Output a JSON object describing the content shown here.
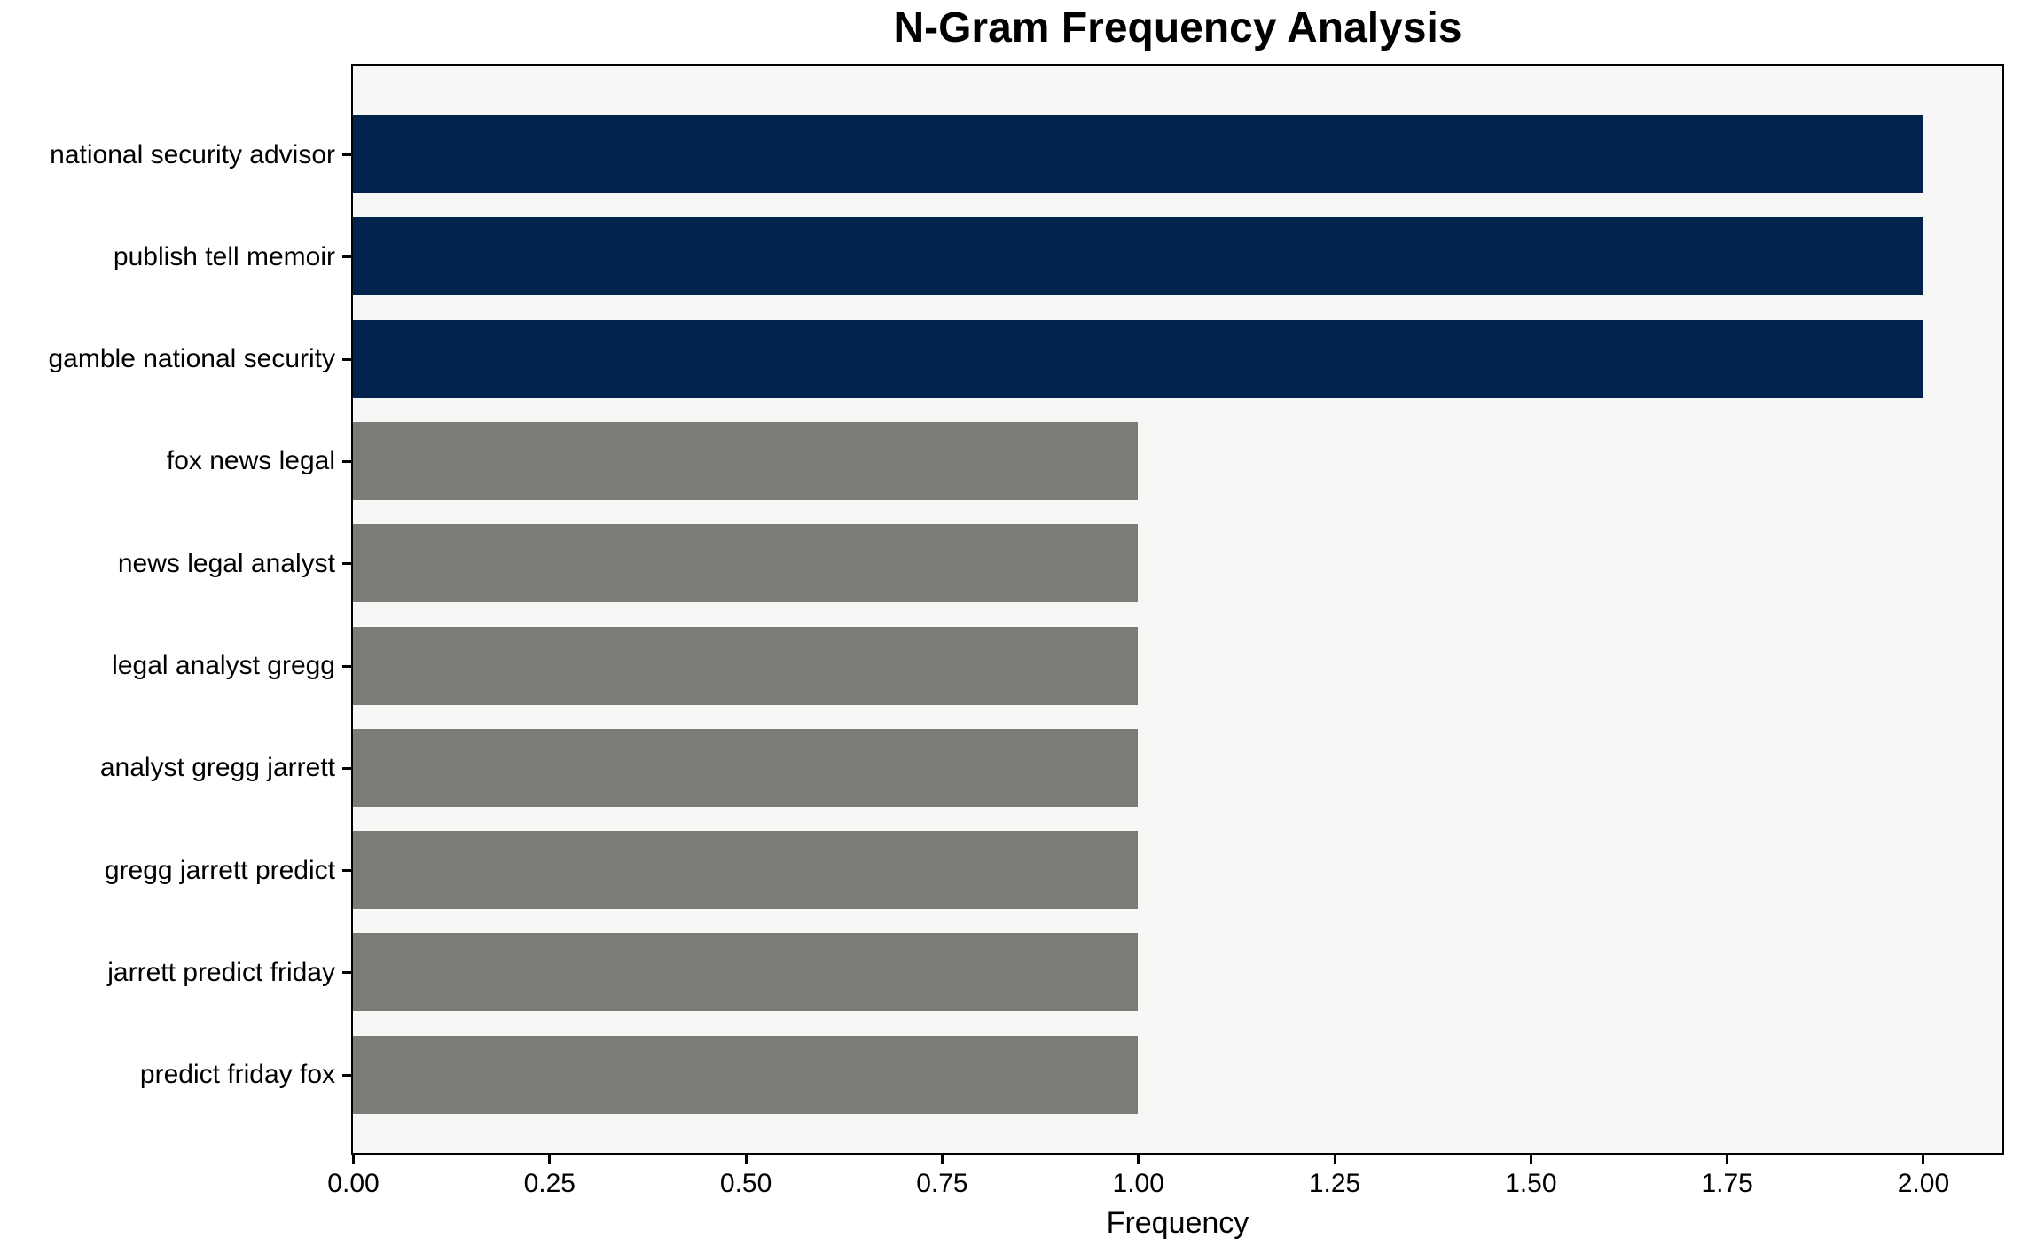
{
  "chart_data": {
    "type": "bar",
    "orientation": "horizontal",
    "title": "N-Gram Frequency Analysis",
    "xlabel": "Frequency",
    "ylabel": "",
    "categories": [
      "national security advisor",
      "publish tell memoir",
      "gamble national security",
      "fox news legal",
      "news legal analyst",
      "legal analyst gregg",
      "analyst gregg jarrett",
      "gregg jarrett predict",
      "jarrett predict friday",
      "predict friday fox"
    ],
    "values": [
      2,
      2,
      2,
      1,
      1,
      1,
      1,
      1,
      1,
      1
    ],
    "bar_colors": [
      "#02234d",
      "#02234d",
      "#02234d",
      "#7b7b78",
      "#7b7b78",
      "#7b7b78",
      "#7b7b78",
      "#7b7b78",
      "#7b7b78",
      "#7b7b78"
    ],
    "xlim": [
      0,
      2.1
    ],
    "xtick_values": [
      0,
      0.25,
      0.5,
      0.75,
      1.0,
      1.25,
      1.5,
      1.75,
      2.0
    ],
    "xtick_labels": [
      "0.00",
      "0.25",
      "0.50",
      "0.75",
      "1.00",
      "1.25",
      "1.50",
      "1.75",
      "2.00"
    ],
    "grid": false,
    "legend": null,
    "colors": {
      "highlight": "#02234d",
      "default": "#7b7b78",
      "plot_background": "#f7f7f6",
      "figure_background": "#ffffff",
      "spine": "#000000",
      "text": "#000000"
    }
  }
}
